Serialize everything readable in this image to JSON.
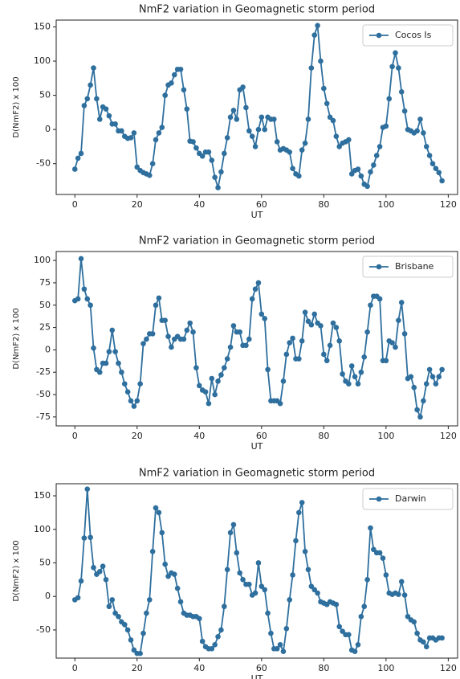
{
  "chart_data": [
    {
      "type": "line",
      "title": "NmF2 variation in Geomagnetic storm period",
      "xlabel": "UT",
      "ylabel": "D(NmF2) x 100",
      "x": [
        0,
        1,
        2,
        3,
        4,
        5,
        6,
        7,
        8,
        9,
        10,
        11,
        12,
        13,
        14,
        15,
        16,
        17,
        18,
        19,
        20,
        21,
        22,
        23,
        24,
        25,
        26,
        27,
        28,
        29,
        30,
        31,
        32,
        33,
        34,
        35,
        36,
        37,
        38,
        39,
        40,
        41,
        42,
        43,
        44,
        45,
        46,
        47,
        48,
        49,
        50,
        51,
        52,
        53,
        54,
        55,
        56,
        57,
        58,
        59,
        60,
        61,
        62,
        63,
        64,
        65,
        66,
        67,
        68,
        69,
        70,
        71,
        72,
        73,
        74,
        75,
        76,
        77,
        78,
        79,
        80,
        81,
        82,
        83,
        84,
        85,
        86,
        87,
        88,
        89,
        90,
        91,
        92,
        93,
        94,
        95,
        96,
        97,
        98,
        99,
        100,
        101,
        102,
        103,
        104,
        105,
        106,
        107,
        108,
        109,
        110,
        111,
        112,
        113,
        114,
        115,
        116,
        117,
        118
      ],
      "series": [
        {
          "name": "Cocos Is",
          "color": "#2e6f9e",
          "values": [
            -58,
            -42,
            -35,
            35,
            45,
            65,
            90,
            45,
            15,
            33,
            30,
            20,
            8,
            8,
            -2,
            -2,
            -10,
            -13,
            -12,
            -5,
            -55,
            -60,
            -63,
            -65,
            -67,
            -50,
            -15,
            -5,
            3,
            50,
            65,
            68,
            80,
            88,
            88,
            58,
            30,
            -17,
            -18,
            -27,
            -35,
            -39,
            -33,
            -33,
            -45,
            -70,
            -85,
            -62,
            -35,
            -12,
            18,
            28,
            15,
            58,
            62,
            32,
            -2,
            -10,
            -25,
            0,
            18,
            0,
            18,
            15,
            15,
            -18,
            -30,
            -28,
            -30,
            -33,
            -57,
            -65,
            -68,
            -30,
            -20,
            15,
            90,
            138,
            152,
            100,
            60,
            38,
            18,
            13,
            -10,
            -25,
            -20,
            -18,
            -15,
            -65,
            -60,
            -58,
            -68,
            -80,
            -83,
            -62,
            -52,
            -38,
            -25,
            3,
            5,
            45,
            92,
            112,
            90,
            55,
            27,
            0,
            -2,
            -5,
            -2,
            15,
            -5,
            -25,
            -38,
            -50,
            -57,
            -63,
            -75
          ]
        }
      ],
      "xlim": [
        -6,
        123
      ],
      "ylim": [
        -95,
        160
      ],
      "xticks": [
        0,
        20,
        40,
        60,
        80,
        100,
        120
      ],
      "yticks": [
        -50,
        0,
        50,
        100,
        150
      ],
      "legend": "upper right",
      "marker": "o"
    },
    {
      "type": "line",
      "title": "NmF2 variation in Geomagnetic storm period",
      "xlabel": "UT",
      "ylabel": "D(NmF2) x 100",
      "x": [
        0,
        1,
        2,
        3,
        4,
        5,
        6,
        7,
        8,
        9,
        10,
        11,
        12,
        13,
        14,
        15,
        16,
        17,
        18,
        19,
        20,
        21,
        22,
        23,
        24,
        25,
        26,
        27,
        28,
        29,
        30,
        31,
        32,
        33,
        34,
        35,
        36,
        37,
        38,
        39,
        40,
        41,
        42,
        43,
        44,
        45,
        46,
        47,
        48,
        49,
        50,
        51,
        52,
        53,
        54,
        55,
        56,
        57,
        58,
        59,
        60,
        61,
        62,
        63,
        64,
        65,
        66,
        67,
        68,
        69,
        70,
        71,
        72,
        73,
        74,
        75,
        76,
        77,
        78,
        79,
        80,
        81,
        82,
        83,
        84,
        85,
        86,
        87,
        88,
        89,
        90,
        91,
        92,
        93,
        94,
        95,
        96,
        97,
        98,
        99,
        100,
        101,
        102,
        103,
        104,
        105,
        106,
        107,
        108,
        109,
        110,
        111,
        112,
        113,
        114,
        115,
        116,
        117,
        118
      ],
      "series": [
        {
          "name": "Brisbane",
          "color": "#2e6f9e",
          "values": [
            55,
            57,
            102,
            68,
            57,
            50,
            2,
            -22,
            -25,
            -15,
            -15,
            -2,
            22,
            -2,
            -15,
            -25,
            -38,
            -47,
            -57,
            -63,
            -57,
            -38,
            7,
            12,
            18,
            18,
            50,
            58,
            33,
            33,
            15,
            3,
            12,
            15,
            12,
            12,
            22,
            30,
            20,
            -20,
            -40,
            -45,
            -47,
            -60,
            -32,
            -50,
            -35,
            -28,
            -20,
            -10,
            3,
            27,
            20,
            20,
            5,
            5,
            12,
            57,
            68,
            75,
            40,
            35,
            -22,
            -57,
            -57,
            -57,
            -60,
            -35,
            -5,
            8,
            13,
            -10,
            -10,
            10,
            42,
            32,
            28,
            40,
            30,
            27,
            -5,
            -12,
            5,
            30,
            25,
            10,
            -27,
            -35,
            -38,
            -18,
            -30,
            -38,
            -25,
            -8,
            20,
            50,
            60,
            60,
            57,
            -12,
            -12,
            10,
            8,
            3,
            33,
            53,
            18,
            -32,
            -30,
            -42,
            -67,
            -75,
            -57,
            -38,
            -22,
            -30,
            -38,
            -30,
            -22
          ]
        }
      ],
      "xlim": [
        -6,
        123
      ],
      "ylim": [
        -85,
        110
      ],
      "xticks": [
        0,
        20,
        40,
        60,
        80,
        100,
        120
      ],
      "yticks": [
        -75,
        -50,
        -25,
        0,
        25,
        50,
        75,
        100
      ],
      "legend": "upper right",
      "marker": "o"
    },
    {
      "type": "line",
      "title": "NmF2 variation in Geomagnetic storm period",
      "xlabel": "UT",
      "ylabel": "D(NmF2) x 100",
      "x": [
        0,
        1,
        2,
        3,
        4,
        5,
        6,
        7,
        8,
        9,
        10,
        11,
        12,
        13,
        14,
        15,
        16,
        17,
        18,
        19,
        20,
        21,
        22,
        23,
        24,
        25,
        26,
        27,
        28,
        29,
        30,
        31,
        32,
        33,
        34,
        35,
        36,
        37,
        38,
        39,
        40,
        41,
        42,
        43,
        44,
        45,
        46,
        47,
        48,
        49,
        50,
        51,
        52,
        53,
        54,
        55,
        56,
        57,
        58,
        59,
        60,
        61,
        62,
        63,
        64,
        65,
        66,
        67,
        68,
        69,
        70,
        71,
        72,
        73,
        74,
        75,
        76,
        77,
        78,
        79,
        80,
        81,
        82,
        83,
        84,
        85,
        86,
        87,
        88,
        89,
        90,
        91,
        92,
        93,
        94,
        95,
        96,
        97,
        98,
        99,
        100,
        101,
        102,
        103,
        104,
        105,
        106,
        107,
        108,
        109,
        110,
        111,
        112,
        113,
        114,
        115,
        116,
        117,
        118
      ],
      "series": [
        {
          "name": "Darwin",
          "color": "#2e6f9e",
          "values": [
            -5,
            -2,
            23,
            87,
            160,
            88,
            43,
            33,
            37,
            45,
            25,
            -15,
            -5,
            -25,
            -30,
            -38,
            -42,
            -50,
            -65,
            -80,
            -85,
            -85,
            -55,
            -25,
            -5,
            67,
            132,
            125,
            95,
            48,
            30,
            35,
            33,
            12,
            -8,
            -25,
            -28,
            -28,
            -30,
            -30,
            -33,
            -67,
            -75,
            -78,
            -78,
            -72,
            -60,
            -50,
            -15,
            40,
            95,
            107,
            65,
            35,
            25,
            18,
            18,
            2,
            5,
            50,
            15,
            10,
            -25,
            -55,
            -78,
            -78,
            -72,
            -82,
            -48,
            -5,
            32,
            83,
            125,
            140,
            67,
            40,
            15,
            10,
            5,
            -8,
            -10,
            -12,
            -8,
            -10,
            -12,
            -45,
            -52,
            -57,
            -57,
            -80,
            -82,
            -72,
            -30,
            -15,
            25,
            102,
            70,
            65,
            65,
            57,
            32,
            5,
            3,
            5,
            3,
            22,
            2,
            -30,
            -35,
            -38,
            -55,
            -65,
            -68,
            -75,
            -62,
            -62,
            -65,
            -62,
            -62
          ]
        }
      ],
      "xlim": [
        -6,
        123
      ],
      "ylim": [
        -92,
        168
      ],
      "xticks": [
        0,
        20,
        40,
        60,
        80,
        100,
        120
      ],
      "yticks": [
        -50,
        0,
        50,
        100,
        150
      ],
      "legend": "upper right",
      "marker": "o"
    }
  ]
}
